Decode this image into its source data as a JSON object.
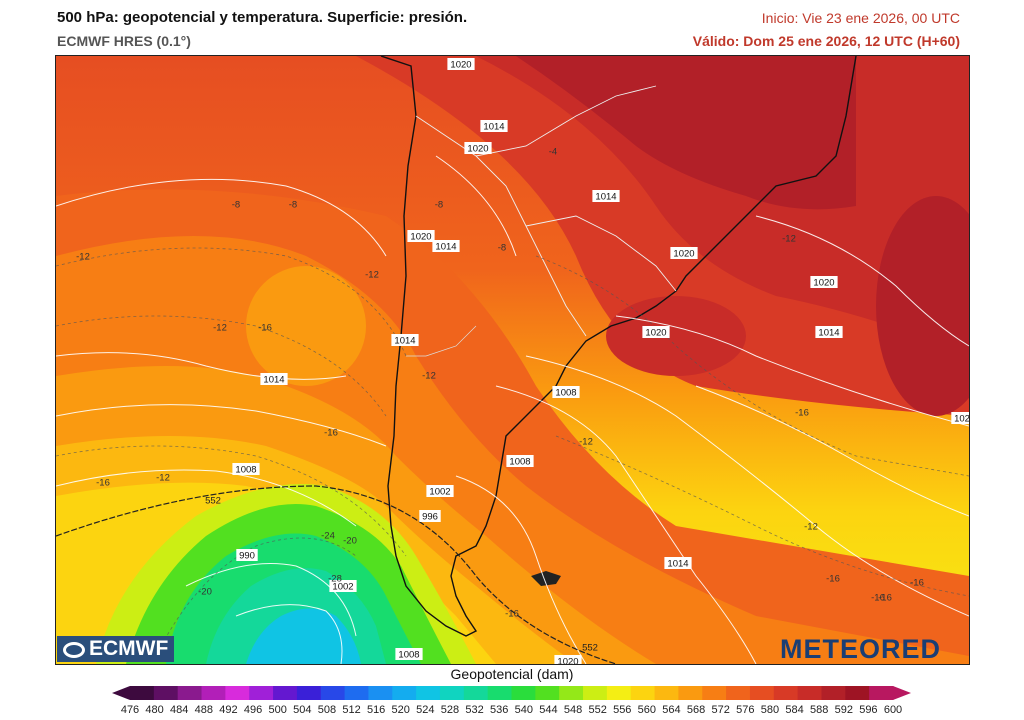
{
  "header": {
    "title": "500 hPa: geopotencial y temperatura. Superficie: presión.",
    "model": "ECMWF HRES (0.1°)",
    "init": "Inicio: Vie 23 ene 2026, 00 UTC",
    "valid": "Válido: Dom 25 ene 2026, 12 UTC (H+60)"
  },
  "logos": {
    "left": "ECMWF",
    "right": "METEORED"
  },
  "colorbar": {
    "title": "Geopotencial (dam)",
    "values": [
      "476",
      "480",
      "484",
      "488",
      "492",
      "496",
      "500",
      "504",
      "508",
      "512",
      "516",
      "520",
      "524",
      "528",
      "532",
      "536",
      "540",
      "544",
      "548",
      "552",
      "556",
      "560",
      "564",
      "568",
      "572",
      "576",
      "580",
      "584",
      "588",
      "592",
      "596",
      "600"
    ],
    "colors": [
      "#3d0a3e",
      "#5e0f63",
      "#8a1a8e",
      "#b21fb8",
      "#d82bdc",
      "#a020d8",
      "#6418d0",
      "#3a20d8",
      "#2848e8",
      "#1e6cf0",
      "#1a90f2",
      "#14acef",
      "#10c4e4",
      "#10d4c0",
      "#14d89a",
      "#18dc6e",
      "#2add3c",
      "#52e020",
      "#94e818",
      "#ccee14",
      "#f4ee14",
      "#fcd410",
      "#fcb810",
      "#fa9a10",
      "#f77e14",
      "#f0641c",
      "#e64e22",
      "#d83a26",
      "#c82c28",
      "#b22028",
      "#9e1424",
      "#b81860"
    ]
  },
  "pressure_labels": [
    "1020",
    "1014",
    "1020",
    "1014",
    "1020",
    "1020",
    "1014",
    "1020",
    "1020",
    "1014",
    "1014",
    "1014",
    "1008",
    "1008",
    "1008",
    "1002",
    "996",
    "990",
    "1002",
    "1008",
    "1020",
    "1014",
    "102"
  ],
  "temperature_labels": [
    "-4",
    "-8",
    "-8",
    "-8",
    "-8",
    "-12",
    "-12",
    "-12",
    "-12",
    "-16",
    "-12",
    "-16",
    "-16",
    "-12",
    "-12",
    "-16",
    "-20",
    "-24",
    "-28",
    "-20",
    "-16",
    "-12",
    "-16",
    "-16",
    "-16",
    "-16"
  ],
  "height_labels": [
    "552",
    "552"
  ],
  "colors": {
    "accent": "#c0392b",
    "brand": "#1a3e74"
  }
}
